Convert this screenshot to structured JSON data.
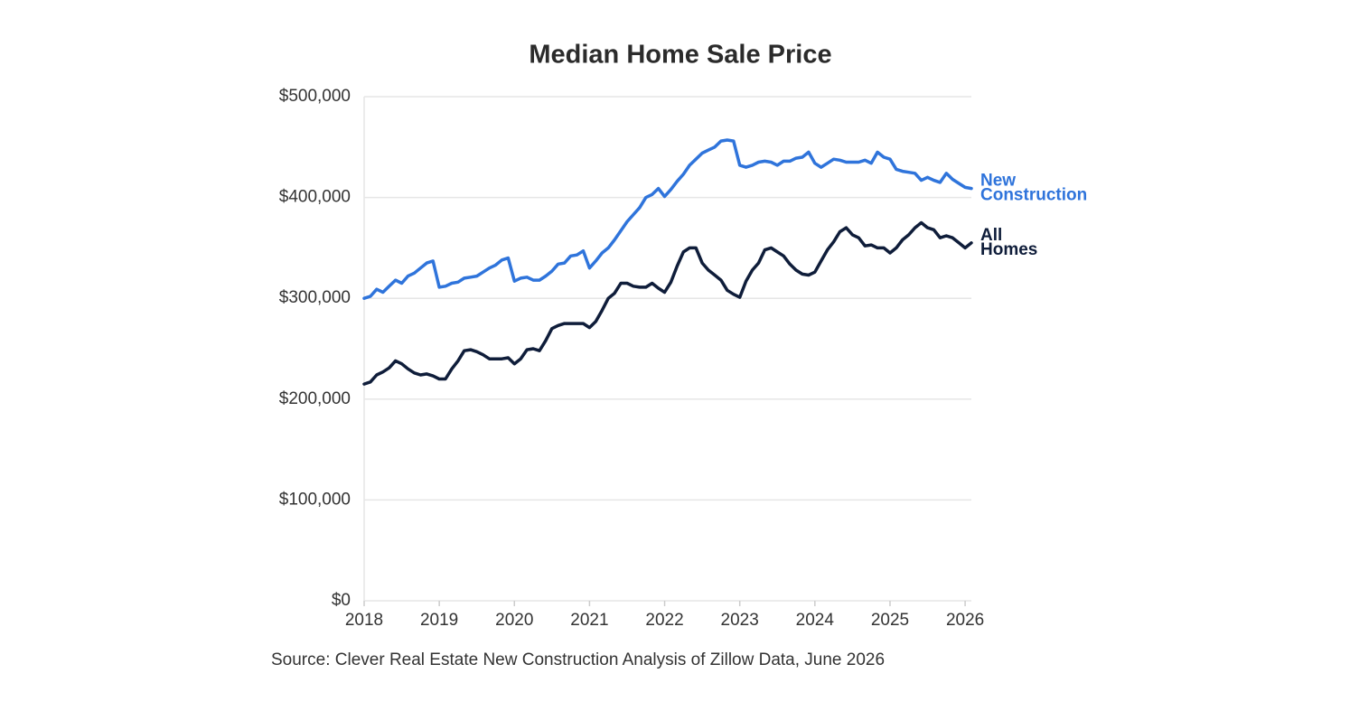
{
  "chart_data": {
    "type": "line",
    "title": "Median Home Sale Price",
    "source": "Source: Clever Real Estate New Construction Analysis of Zillow Data, June 2026",
    "x": [
      2018,
      2018.083,
      2018.167,
      2018.25,
      2018.333,
      2018.417,
      2018.5,
      2018.583,
      2018.667,
      2018.75,
      2018.833,
      2018.917,
      2019,
      2019.083,
      2019.167,
      2019.25,
      2019.333,
      2019.417,
      2019.5,
      2019.583,
      2019.667,
      2019.75,
      2019.833,
      2019.917,
      2020,
      2020.083,
      2020.167,
      2020.25,
      2020.333,
      2020.417,
      2020.5,
      2020.583,
      2020.667,
      2020.75,
      2020.833,
      2020.917,
      2021,
      2021.083,
      2021.167,
      2021.25,
      2021.333,
      2021.417,
      2021.5,
      2021.583,
      2021.667,
      2021.75,
      2021.833,
      2021.917,
      2022,
      2022.083,
      2022.167,
      2022.25,
      2022.333,
      2022.417,
      2022.5,
      2022.583,
      2022.667,
      2022.75,
      2022.833,
      2022.917,
      2023,
      2023.083,
      2023.167,
      2023.25,
      2023.333,
      2023.417,
      2023.5,
      2023.583,
      2023.667,
      2023.75,
      2023.833,
      2023.917,
      2024,
      2024.083,
      2024.167,
      2024.25,
      2024.333,
      2024.417,
      2024.5,
      2024.583,
      2024.667,
      2024.75,
      2024.833,
      2024.917,
      2025,
      2025.083,
      2025.167,
      2025.25,
      2025.333,
      2025.417,
      2025.5,
      2025.583,
      2025.667,
      2025.75,
      2025.833,
      2025.917,
      2026,
      2026.083
    ],
    "series": [
      {
        "name": "New Construction",
        "color": "#2f74db",
        "values": [
          300000,
          302000,
          309000,
          306000,
          312000,
          318000,
          315000,
          322000,
          325000,
          330000,
          335000,
          337000,
          311000,
          312000,
          315000,
          316000,
          320000,
          321000,
          322000,
          326000,
          330000,
          333000,
          338000,
          340000,
          317000,
          320000,
          321000,
          318000,
          318000,
          322000,
          327000,
          334000,
          335000,
          342000,
          343000,
          347000,
          330000,
          337000,
          345000,
          350000,
          358000,
          367000,
          376000,
          383000,
          390000,
          400000,
          403000,
          409000,
          401000,
          408000,
          416000,
          423000,
          432000,
          438000,
          444000,
          447000,
          450000,
          456000,
          457000,
          456000,
          432000,
          430000,
          432000,
          435000,
          436000,
          435000,
          432000,
          436000,
          436000,
          439000,
          440000,
          445000,
          434000,
          430000,
          434000,
          438000,
          437000,
          435000,
          435000,
          435000,
          437000,
          434000,
          445000,
          440000,
          438000,
          428000,
          426000,
          425000,
          424000,
          417000,
          420000,
          417000,
          415000,
          424000,
          418000,
          414000,
          410000,
          409000
        ]
      },
      {
        "name": "All Homes",
        "color": "#0f1d3a",
        "values": [
          215000,
          217000,
          224000,
          227000,
          231000,
          238000,
          235000,
          230000,
          226000,
          224000,
          225000,
          223000,
          220000,
          220000,
          230000,
          238000,
          248000,
          249000,
          247000,
          244000,
          240000,
          240000,
          240000,
          241000,
          235000,
          240000,
          249000,
          250000,
          248000,
          258000,
          270000,
          273000,
          275000,
          275000,
          275000,
          275000,
          271000,
          277000,
          288000,
          300000,
          305000,
          315000,
          315000,
          312000,
          311000,
          311000,
          315000,
          310000,
          306000,
          316000,
          332000,
          346000,
          350000,
          350000,
          335000,
          328000,
          323000,
          318000,
          308000,
          304000,
          301000,
          317000,
          328000,
          335000,
          348000,
          350000,
          346000,
          342000,
          334000,
          328000,
          324000,
          323000,
          326000,
          337000,
          348000,
          356000,
          366000,
          370000,
          363000,
          360000,
          352000,
          353000,
          350000,
          350000,
          345000,
          350000,
          358000,
          363000,
          370000,
          375000,
          370000,
          368000,
          360000,
          362000,
          360000,
          355000,
          350000,
          355000
        ]
      }
    ],
    "xlim": [
      2018,
      2026.083
    ],
    "xticks": [
      2018,
      2019,
      2020,
      2021,
      2022,
      2023,
      2024,
      2025,
      2026
    ],
    "ylim": [
      0,
      500000
    ],
    "yticks": [
      {
        "value": 0,
        "label": "$0"
      },
      {
        "value": 100000,
        "label": "$100,000"
      },
      {
        "value": 200000,
        "label": "$200,000"
      },
      {
        "value": 300000,
        "label": "$300,000"
      },
      {
        "value": 400000,
        "label": "$400,000"
      },
      {
        "value": 500000,
        "label": "$500,000"
      }
    ],
    "grid": true
  }
}
